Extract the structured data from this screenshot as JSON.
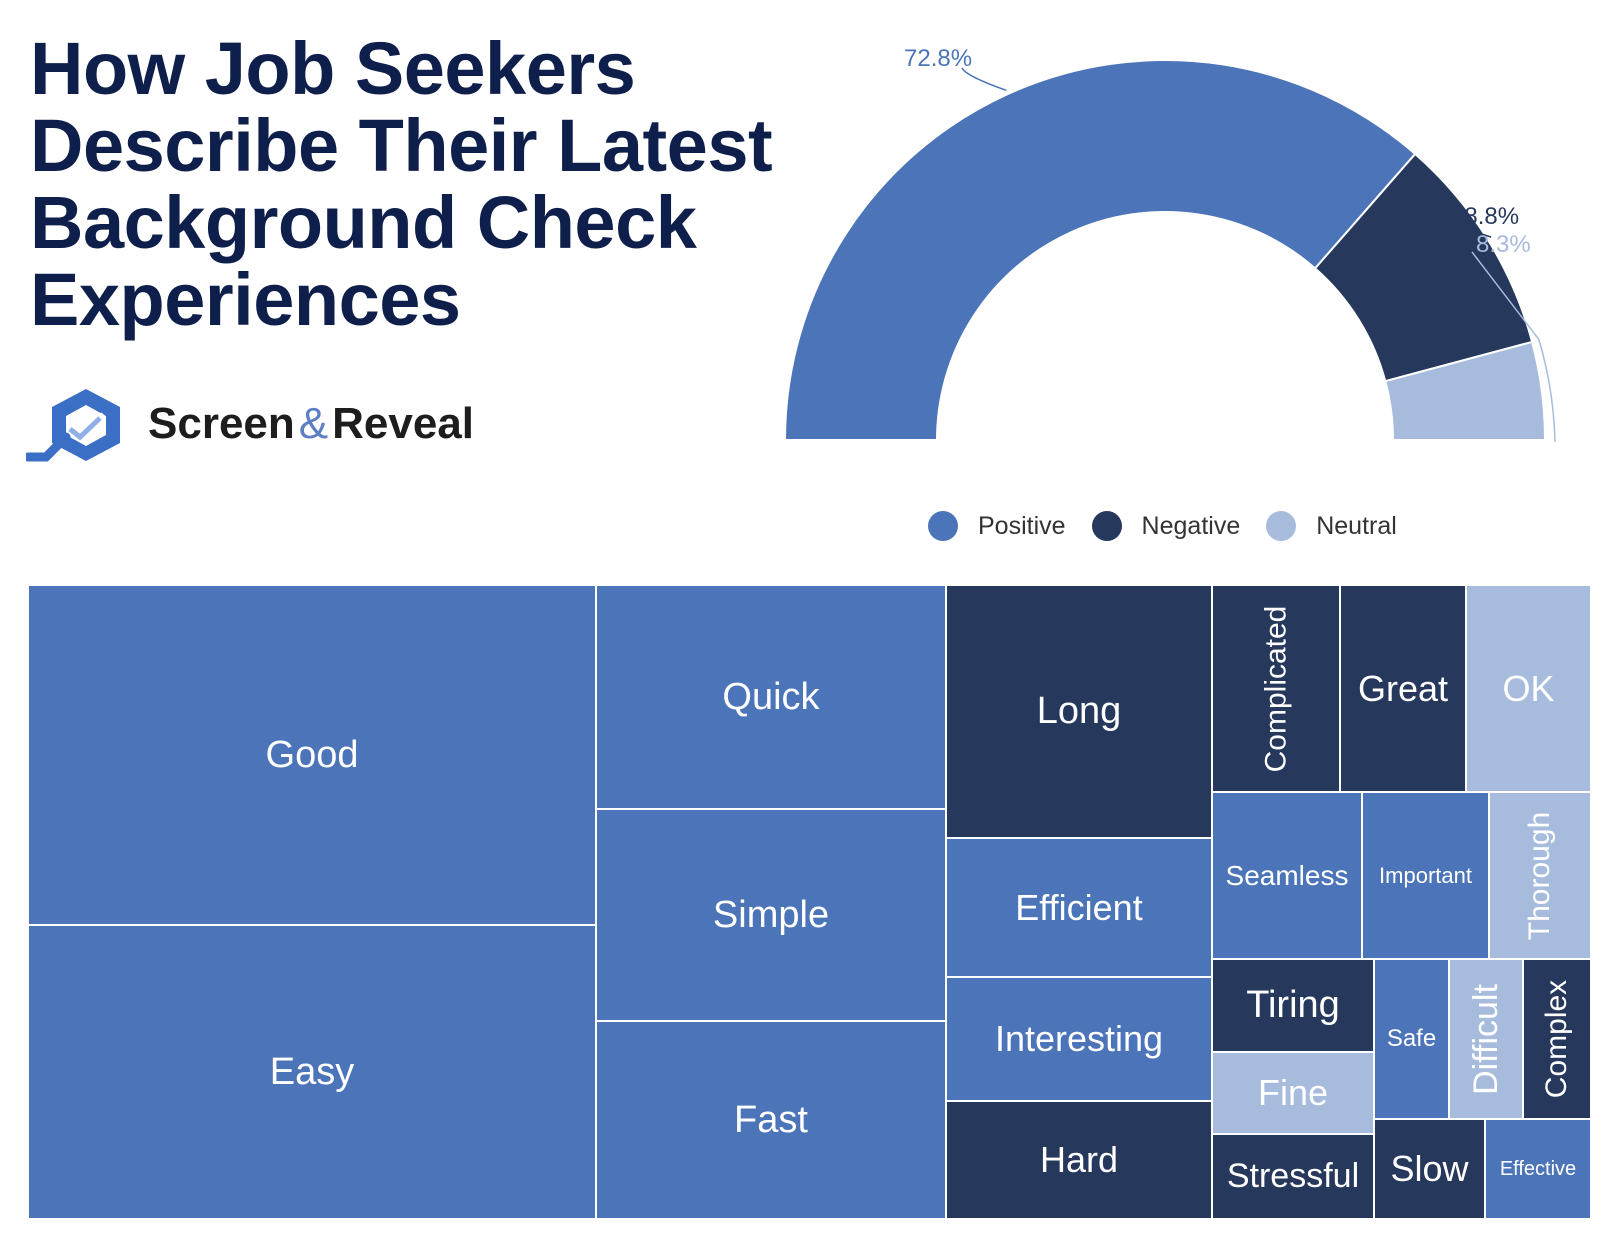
{
  "title_lines": [
    "How Job Seekers",
    "Describe Their Latest",
    "Background Check",
    "Experiences"
  ],
  "brand": {
    "name_left": "Screen",
    "ampersand": "&",
    "name_right": "Reveal"
  },
  "colors": {
    "positive": "#4c74b9",
    "negative": "#26385c",
    "neutral": "#a7bbdd",
    "title": "#0f1f4b"
  },
  "chart_data": [
    {
      "type": "pie",
      "shape": "semi-donut",
      "legend": "bottom",
      "slices": [
        {
          "name": "Positive",
          "value": 72.8,
          "label": "72.8%",
          "color": "#4c74b9"
        },
        {
          "name": "Negative",
          "value": 18.8,
          "label": "18.8%",
          "color": "#26385c"
        },
        {
          "name": "Neutral",
          "value": 8.3,
          "label": "8.3%",
          "color": "#a7bbdd"
        }
      ]
    },
    {
      "type": "treemap",
      "legend": "none",
      "cells": [
        {
          "name": "Good",
          "sentiment": "Positive"
        },
        {
          "name": "Easy",
          "sentiment": "Positive"
        },
        {
          "name": "Quick",
          "sentiment": "Positive"
        },
        {
          "name": "Simple",
          "sentiment": "Positive"
        },
        {
          "name": "Fast",
          "sentiment": "Positive"
        },
        {
          "name": "Long",
          "sentiment": "Negative"
        },
        {
          "name": "Efficient",
          "sentiment": "Positive"
        },
        {
          "name": "Interesting",
          "sentiment": "Positive"
        },
        {
          "name": "Hard",
          "sentiment": "Negative"
        },
        {
          "name": "Complicated",
          "sentiment": "Negative"
        },
        {
          "name": "Great",
          "sentiment": "Negative"
        },
        {
          "name": "OK",
          "sentiment": "Neutral"
        },
        {
          "name": "Seamless",
          "sentiment": "Positive"
        },
        {
          "name": "Important",
          "sentiment": "Positive"
        },
        {
          "name": "Thorough",
          "sentiment": "Neutral"
        },
        {
          "name": "Tiring",
          "sentiment": "Negative"
        },
        {
          "name": "Fine",
          "sentiment": "Neutral"
        },
        {
          "name": "Stressful",
          "sentiment": "Negative"
        },
        {
          "name": "Safe",
          "sentiment": "Positive"
        },
        {
          "name": "Difficult",
          "sentiment": "Neutral"
        },
        {
          "name": "Complex",
          "sentiment": "Negative"
        },
        {
          "name": "Slow",
          "sentiment": "Negative"
        },
        {
          "name": "Effective",
          "sentiment": "Positive"
        }
      ]
    }
  ]
}
